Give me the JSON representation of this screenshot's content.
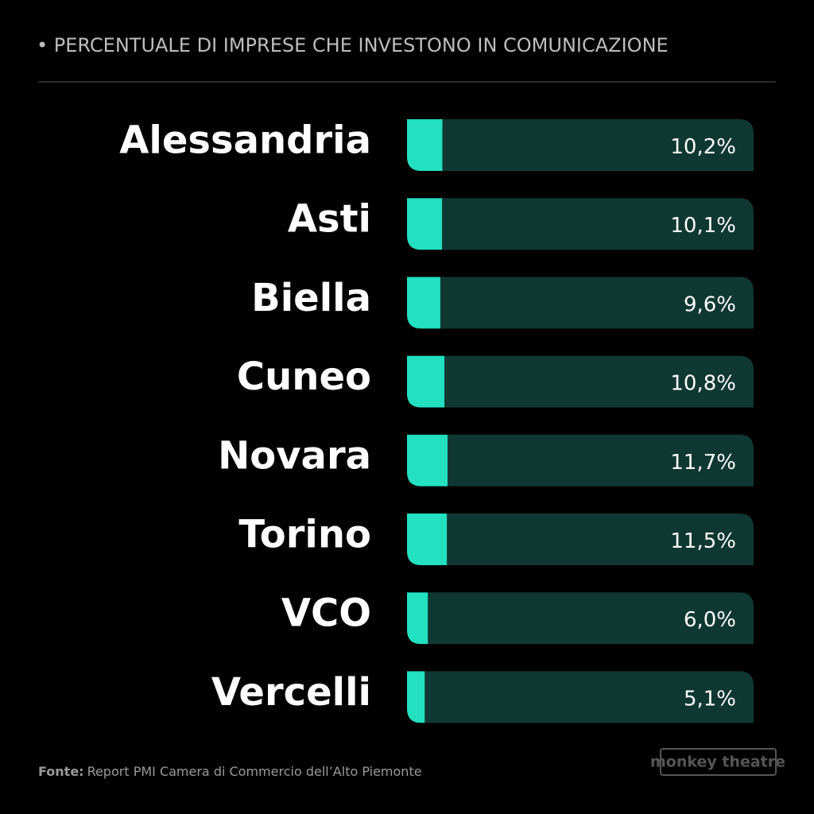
{
  "chart_data": {
    "type": "bar",
    "orientation": "horizontal",
    "title": "• PERCENTUALE DI IMPRESE CHE INVESTONO IN COMUNICAZIONE",
    "categories": [
      "Alessandria",
      "Asti",
      "Biella",
      "Cuneo",
      "Novara",
      "Torino",
      "VCO",
      "Vercelli"
    ],
    "values": [
      10.2,
      10.1,
      9.6,
      10.8,
      11.7,
      11.5,
      6.0,
      5.1
    ],
    "value_labels": [
      "10,2%",
      "10,1%",
      "9,6%",
      "10,8%",
      "11,7%",
      "11,5%",
      "6,0%",
      "5,1%"
    ],
    "color": "#22e0c0",
    "track_color": "#0f3832",
    "xlim": [
      0,
      100
    ],
    "source_label": "Fonte:",
    "source": "Report PMI Camera di Commercio dell’Alto Piemonte",
    "brand": "monkey theatre"
  }
}
